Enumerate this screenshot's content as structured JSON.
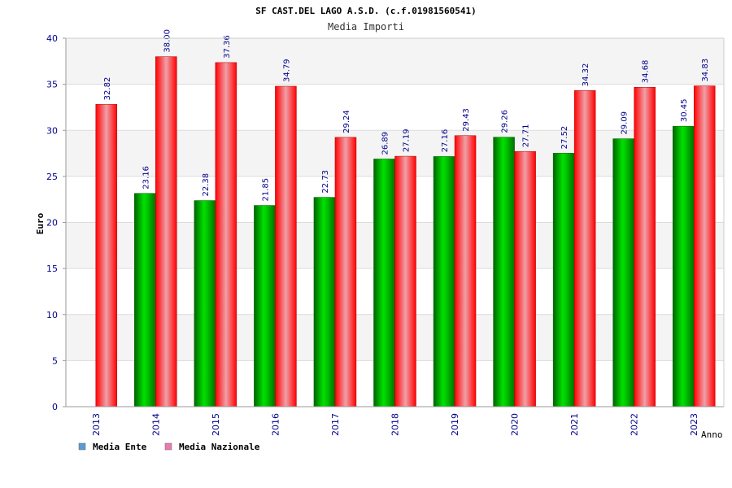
{
  "chart_data": {
    "type": "bar",
    "title": "SF CAST.DEL LAGO A.S.D. (c.f.01981560541)",
    "subtitle": "Media Importi",
    "xlabel": "Anno",
    "ylabel": "Euro",
    "ylim": [
      0,
      40
    ],
    "yticks": [
      0,
      5,
      10,
      15,
      20,
      25,
      30,
      35,
      40
    ],
    "grid": true,
    "legend_position": "bottom-left",
    "categories": [
      "2013",
      "2014",
      "2015",
      "2016",
      "2017",
      "2018",
      "2019",
      "2020",
      "2021",
      "2022",
      "2023"
    ],
    "series": [
      {
        "name": "Media Ente",
        "color": "#00c000",
        "legend_color": "#5b9bd5",
        "values": [
          null,
          23.16,
          22.38,
          21.85,
          22.73,
          26.89,
          27.16,
          29.26,
          27.52,
          29.09,
          30.45
        ],
        "labels": [
          "",
          "23.16",
          "22.38",
          "21.85",
          "22.73",
          "26.89",
          "27.16",
          "29.26",
          "27.52",
          "29.09",
          "30.45"
        ]
      },
      {
        "name": "Media Nazionale",
        "color": "#ff0000",
        "legend_color": "#e87bb0",
        "values": [
          32.82,
          38.0,
          37.36,
          34.79,
          29.24,
          27.19,
          29.43,
          27.71,
          34.32,
          34.68,
          34.83
        ],
        "labels": [
          "32.82",
          "38.00",
          "37.36",
          "34.79",
          "29.24",
          "27.19",
          "29.43",
          "27.71",
          "34.32",
          "34.68",
          "34.83"
        ]
      }
    ]
  }
}
